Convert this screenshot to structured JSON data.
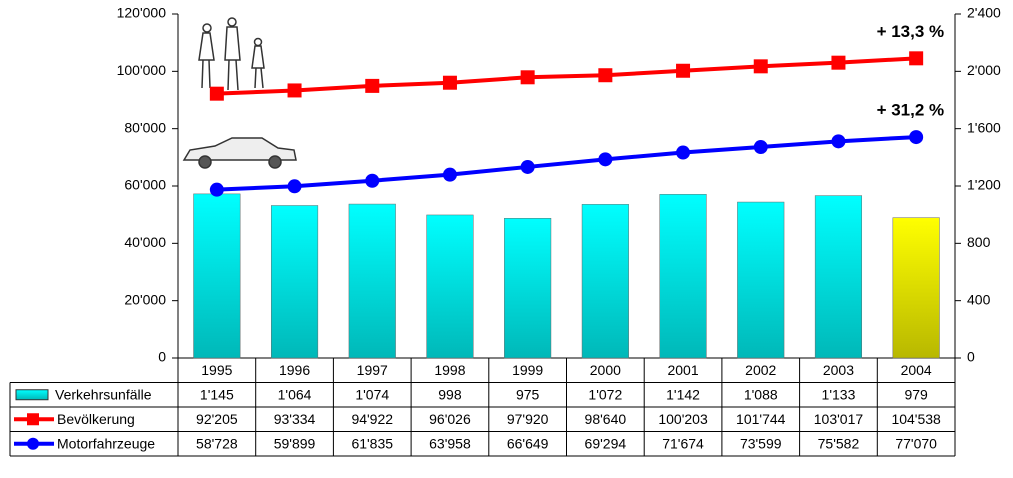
{
  "chart_data": {
    "type": "bar-line-table",
    "categories": [
      "1995",
      "1996",
      "1997",
      "1998",
      "1999",
      "2000",
      "2001",
      "2002",
      "2003",
      "2004"
    ],
    "series": [
      {
        "name": "Verkehrsunfälle",
        "type": "bar",
        "axis": "y2",
        "color": "#00e8e8",
        "point_colors": [
          "#00e8e8",
          "#00e8e8",
          "#00e8e8",
          "#00e8e8",
          "#00e8e8",
          "#00e8e8",
          "#00e8e8",
          "#00e8e8",
          "#00e8e8",
          "#e8e800"
        ],
        "values": [
          1145,
          1064,
          1074,
          998,
          975,
          1072,
          1142,
          1088,
          1133,
          979
        ],
        "value_labels": [
          "1'145",
          "1'064",
          "1'074",
          "998",
          "975",
          "1'072",
          "1'142",
          "1'088",
          "1'133",
          "979"
        ]
      },
      {
        "name": "Bevölkerung",
        "type": "line",
        "marker": "square",
        "color": "#ff0000",
        "values": [
          92205,
          93334,
          94922,
          96026,
          97920,
          98640,
          100203,
          101744,
          103017,
          104538
        ],
        "value_labels": [
          "92'205",
          "93'334",
          "94'922",
          "96'026",
          "97'920",
          "98'640",
          "100'203",
          "101'744",
          "103'017",
          "104'538"
        ]
      },
      {
        "name": "Motorfahrzeuge",
        "type": "line",
        "marker": "circle",
        "color": "#0000ff",
        "values": [
          58728,
          59899,
          61835,
          63958,
          66649,
          69294,
          71674,
          73599,
          75582,
          77070
        ],
        "value_labels": [
          "58'728",
          "59'899",
          "61'835",
          "63'958",
          "66'649",
          "69'294",
          "71'674",
          "73'599",
          "75'582",
          "77'070"
        ]
      }
    ],
    "annotations": [
      {
        "text": "+ 13,3 %",
        "color": "#ff0000",
        "series": 1
      },
      {
        "text": "+ 31,2 %",
        "color": "#000099",
        "series": 2
      }
    ],
    "ylim": [
      0,
      120000
    ],
    "yticks": [
      0,
      {
        "value": 20000,
        "label": "20'000"
      },
      {
        "value": 40000,
        "label": "40'000"
      },
      {
        "value": 60000,
        "label": "60'000"
      },
      {
        "value": 80000,
        "label": "80'000"
      },
      {
        "value": 100000,
        "label": "100'000"
      },
      {
        "value": 120000,
        "label": "120'000"
      }
    ],
    "y2lim": [
      0,
      2400
    ],
    "y2ticks": [
      0,
      400,
      800,
      {
        "value": 1200,
        "label": "1'200"
      },
      {
        "value": 1600,
        "label": "1'600"
      },
      {
        "value": 2000,
        "label": "2'000"
      },
      {
        "value": 2400,
        "label": "2'400"
      }
    ],
    "grid": false
  }
}
